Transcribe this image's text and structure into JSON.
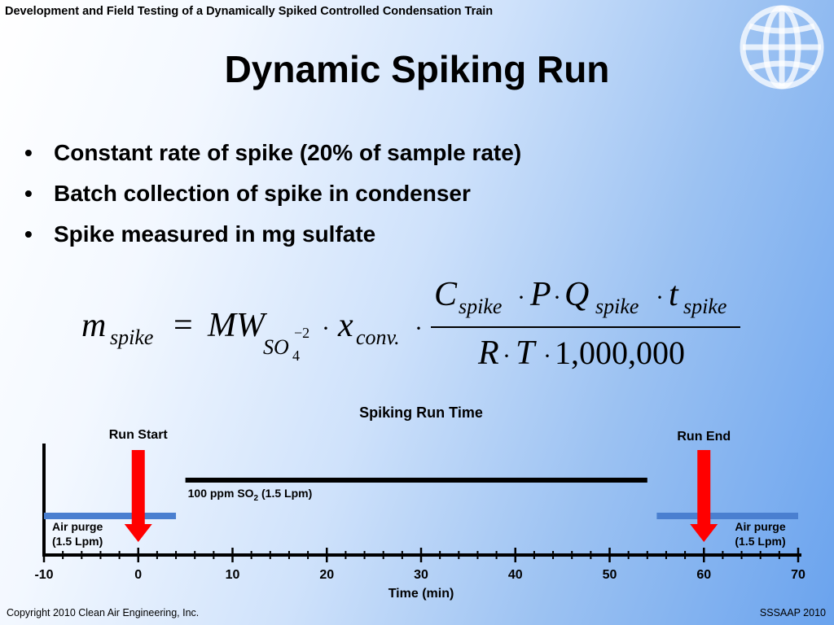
{
  "header": {
    "title": "Development and Field Testing of a Dynamically Spiked Controlled Condensation Train"
  },
  "title": "Dynamic Spiking Run",
  "bullets": [
    "Constant rate of spike (20% of sample rate)",
    "Batch collection of spike in condenser",
    "Spike measured in mg sulfate"
  ],
  "formula": {
    "lhs_var": "m",
    "lhs_sub": "spike",
    "equals": "=",
    "mw": "MW",
    "mw_sub": "SO",
    "mw_sub_index": "4",
    "mw_sup": "−2",
    "x_var": "x",
    "x_sub": "conv.",
    "num_c": "C",
    "num_c_sub": "spike",
    "num_p": "P",
    "num_q": "Q",
    "num_q_sub": "spike",
    "num_t": "t",
    "num_t_sub": "spike",
    "den_r": "R",
    "den_t": "T",
    "den_const": "1,000,000",
    "dot": "·"
  },
  "diagram": {
    "title": "Spiking Run Time",
    "run_start": "Run Start",
    "run_end": "Run End",
    "spike_label_prefix": "100 ppm SO",
    "spike_label_sub": "2",
    "spike_label_suffix": " (1.5 Lpm)",
    "purge_left_line1": "Air purge",
    "purge_left_line2": "(1.5 Lpm)",
    "purge_right_line1": "Air purge",
    "purge_right_line2": "(1.5 Lpm)",
    "axis_label": "Time (min)",
    "axis_min": -10,
    "axis_max": 70,
    "major_ticks": [
      -10,
      0,
      10,
      20,
      30,
      40,
      50,
      60,
      70
    ],
    "run_start_time": 0,
    "run_end_time": 60,
    "spike_start_time": 5,
    "spike_end_time": 54,
    "purge_left_range": [
      -10,
      4
    ],
    "purge_right_range": [
      55,
      70
    ],
    "colors": {
      "arrow": "#ff0000",
      "purge": "#4a7fd0",
      "spike": "#000000"
    }
  },
  "footer": {
    "copyright": "Copyright 2010 Clean Air Engineering, Inc.",
    "conference": "SSSAAP 2010"
  }
}
